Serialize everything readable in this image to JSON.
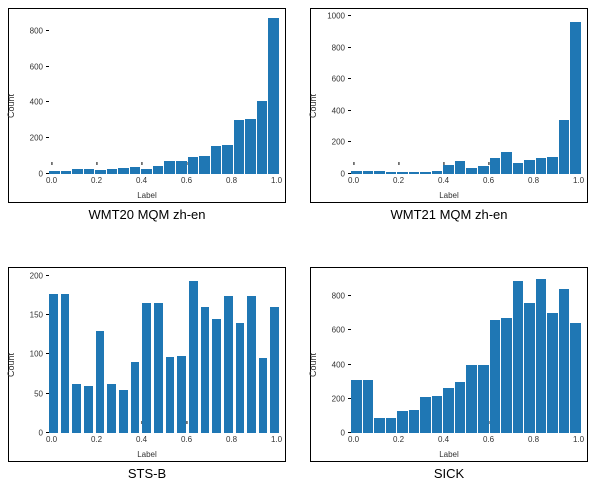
{
  "layout": {
    "bar_color": "#1f77b4",
    "background_color": "#ffffff",
    "border_color": "#000000",
    "font_family": "sans-serif"
  },
  "charts": [
    {
      "caption": "WMT20 MQM zh-en",
      "ylabel": "Count",
      "xlabel": "Label",
      "type": "histogram",
      "x_bins": [
        0.0,
        0.05,
        0.1,
        0.15,
        0.2,
        0.25,
        0.3,
        0.35,
        0.4,
        0.45,
        0.5,
        0.55,
        0.6,
        0.65,
        0.7,
        0.75,
        0.8,
        0.85,
        0.9,
        0.95,
        1.0
      ],
      "values": [
        15,
        18,
        28,
        30,
        20,
        30,
        35,
        38,
        30,
        45,
        70,
        75,
        95,
        100,
        155,
        160,
        300,
        310,
        410,
        870
      ],
      "ylim": [
        0,
        900
      ],
      "yticks": [
        0,
        200,
        400,
        600,
        800
      ],
      "xticks": [
        0.0,
        0.2,
        0.4,
        0.6,
        0.8,
        1.0
      ],
      "xlim": [
        -0.02,
        1.02
      ],
      "bar_spacing": 1,
      "ytick_fontsize": 8,
      "xtick_fontsize": 8,
      "label_fontsize": 9,
      "caption_fontsize": 13
    },
    {
      "caption": "WMT21 MQM zh-en",
      "ylabel": "Count",
      "xlabel": "Label",
      "type": "histogram",
      "x_bins": [
        0.0,
        0.05,
        0.1,
        0.15,
        0.2,
        0.25,
        0.3,
        0.35,
        0.4,
        0.45,
        0.5,
        0.55,
        0.6,
        0.65,
        0.7,
        0.75,
        0.8,
        0.85,
        0.9,
        0.95,
        1.0
      ],
      "values": [
        20,
        22,
        18,
        10,
        10,
        12,
        15,
        18,
        60,
        80,
        35,
        50,
        100,
        140,
        70,
        90,
        100,
        110,
        340,
        960
      ],
      "ylim": [
        0,
        1020
      ],
      "yticks": [
        0,
        200,
        400,
        600,
        800,
        1000
      ],
      "xticks": [
        0.0,
        0.2,
        0.4,
        0.6,
        0.8,
        1.0
      ],
      "xlim": [
        -0.02,
        1.02
      ],
      "bar_spacing": 1,
      "ytick_fontsize": 8,
      "xtick_fontsize": 8,
      "label_fontsize": 9,
      "caption_fontsize": 13
    },
    {
      "caption": "STS-B",
      "ylabel": "Count",
      "xlabel": "Label",
      "type": "histogram",
      "x_bins": [
        0.0,
        0.05,
        0.1,
        0.15,
        0.2,
        0.25,
        0.3,
        0.35,
        0.4,
        0.45,
        0.5,
        0.55,
        0.6,
        0.65,
        0.7,
        0.75,
        0.8,
        0.85,
        0.9,
        0.95,
        1.0
      ],
      "values": [
        177,
        177,
        63,
        60,
        130,
        63,
        55,
        90,
        165,
        165,
        97,
        98,
        193,
        160,
        145,
        175,
        140,
        175,
        95,
        160
      ],
      "ylim": [
        0,
        205
      ],
      "yticks": [
        0,
        50,
        100,
        150,
        200
      ],
      "xticks": [
        0.0,
        0.2,
        0.4,
        0.6,
        0.8,
        1.0
      ],
      "xlim": [
        -0.02,
        1.02
      ],
      "bar_spacing": 3,
      "ytick_fontsize": 8,
      "xtick_fontsize": 8,
      "label_fontsize": 9,
      "caption_fontsize": 13
    },
    {
      "caption": "SICK",
      "ylabel": "Count",
      "xlabel": "Label",
      "type": "histogram",
      "x_bins": [
        0.0,
        0.05,
        0.1,
        0.15,
        0.2,
        0.25,
        0.3,
        0.35,
        0.4,
        0.45,
        0.5,
        0.55,
        0.6,
        0.65,
        0.7,
        0.75,
        0.8,
        0.85,
        0.9,
        0.95,
        1.0
      ],
      "values": [
        310,
        310,
        90,
        90,
        130,
        135,
        210,
        215,
        260,
        300,
        400,
        400,
        660,
        670,
        890,
        760,
        900,
        700,
        840,
        640
      ],
      "ylim": [
        0,
        940
      ],
      "yticks": [
        0,
        200,
        400,
        600,
        800
      ],
      "xticks": [
        0.0,
        0.2,
        0.4,
        0.6,
        0.8,
        1.0
      ],
      "xlim": [
        -0.02,
        1.02
      ],
      "bar_spacing": 1,
      "ytick_fontsize": 8,
      "xtick_fontsize": 8,
      "label_fontsize": 9,
      "caption_fontsize": 13
    }
  ]
}
